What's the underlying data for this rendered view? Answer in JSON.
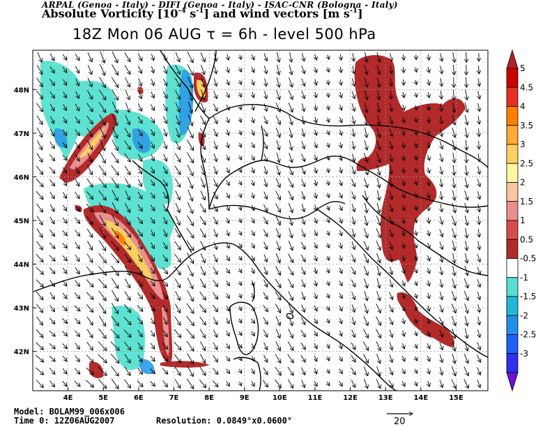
{
  "header": {
    "credits": "ARPAL (Genoa - Italy)  -  DIFI (Genoa - Italy)  -  ISAC-CNR (Bologna - Italy)",
    "field_title_a": "Absolute Vorticity [10",
    "field_title_exp1": "-4",
    "field_title_b": " s",
    "field_title_exp2": "-1",
    "field_title_c": "] and wind vectors [m s",
    "field_title_exp3": "-1",
    "field_title_d": "]",
    "time_line": "18Z Mon 06 AUG  τ = 6h  -  level 500 hPa"
  },
  "map": {
    "lon_labels": [
      "4E",
      "5E",
      "6E",
      "7E",
      "8E",
      "9E",
      "10E",
      "11E",
      "12E",
      "13E",
      "14E",
      "15E"
    ],
    "lon_values": [
      4,
      5,
      6,
      7,
      8,
      9,
      10,
      11,
      12,
      13,
      14,
      15
    ],
    "lat_labels": [
      "42N",
      "43N",
      "44N",
      "45N",
      "46N",
      "47N",
      "48N"
    ],
    "lat_values": [
      42,
      43,
      44,
      45,
      46,
      47,
      48
    ],
    "lon_range": [
      3.0,
      15.9
    ],
    "lat_range": [
      41.1,
      48.9
    ],
    "grid": true,
    "wind_direction": "predominantly from the northwest"
  },
  "colorbar": {
    "labels": [
      "5",
      "4.5",
      "4",
      "3.5",
      "3",
      "2.5",
      "2",
      "1.5",
      "1",
      "0.5",
      "-0.5",
      "-1",
      "-1.5",
      "-2",
      "-2.5",
      "-3"
    ],
    "colors": [
      "#b22222",
      "#cc0000",
      "#e83020",
      "#ff7f00",
      "#ffaa33",
      "#ffd060",
      "#fff6a0",
      "#ffc4a0",
      "#e89090",
      "#d84c4c",
      "#b22a2a",
      "#ffffff",
      "#55e0d0",
      "#20b8d8",
      "#2090e8",
      "#2060f8",
      "#3030f0",
      "#7010d8"
    ]
  },
  "footer": {
    "model": "Model: BOLAM99_006x006",
    "time0": "Time 0: 12Z06AUG2007",
    "resolution": "Resolution: 0.0849°x0.0600°",
    "ref_vector": "20"
  }
}
